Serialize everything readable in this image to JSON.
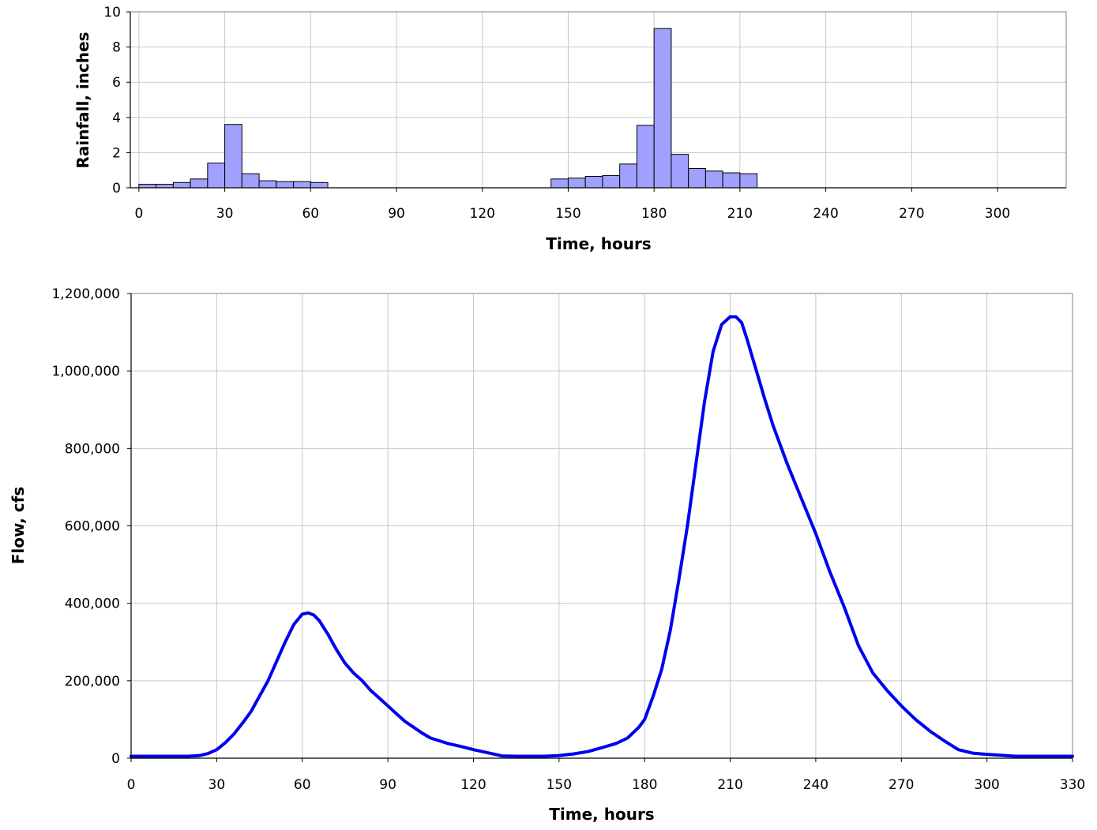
{
  "chart_data": [
    {
      "type": "bar",
      "title": "",
      "xlabel": "Time, hours",
      "ylabel": "Rainfall, inches",
      "xlim": [
        -3,
        324
      ],
      "ylim": [
        0,
        10
      ],
      "xticks": [
        0,
        30,
        60,
        90,
        120,
        150,
        180,
        210,
        240,
        270,
        300
      ],
      "yticks": [
        0,
        2,
        4,
        6,
        8,
        10
      ],
      "grid": true,
      "bar_color": "#a0a0ff",
      "bar_width": 6,
      "bars": [
        {
          "x": 3,
          "y": 0.2
        },
        {
          "x": 9,
          "y": 0.2
        },
        {
          "x": 15,
          "y": 0.3
        },
        {
          "x": 21,
          "y": 0.5
        },
        {
          "x": 27,
          "y": 1.4
        },
        {
          "x": 33,
          "y": 3.6
        },
        {
          "x": 39,
          "y": 0.8
        },
        {
          "x": 45,
          "y": 0.4
        },
        {
          "x": 51,
          "y": 0.35
        },
        {
          "x": 57,
          "y": 0.35
        },
        {
          "x": 63,
          "y": 0.3
        },
        {
          "x": 147,
          "y": 0.5
        },
        {
          "x": 153,
          "y": 0.55
        },
        {
          "x": 159,
          "y": 0.65
        },
        {
          "x": 165,
          "y": 0.7
        },
        {
          "x": 171,
          "y": 1.35
        },
        {
          "x": 177,
          "y": 3.55
        },
        {
          "x": 183,
          "y": 9.05
        },
        {
          "x": 189,
          "y": 1.9
        },
        {
          "x": 195,
          "y": 1.1
        },
        {
          "x": 201,
          "y": 0.95
        },
        {
          "x": 207,
          "y": 0.85
        },
        {
          "x": 213,
          "y": 0.8
        }
      ]
    },
    {
      "type": "line",
      "title": "",
      "xlabel": "Time, hours",
      "ylabel": "Flow, cfs",
      "xlim": [
        0,
        330
      ],
      "ylim": [
        0,
        1200000
      ],
      "xticks": [
        0,
        30,
        60,
        90,
        120,
        150,
        180,
        210,
        240,
        270,
        300,
        330
      ],
      "yticks": [
        0,
        200000,
        400000,
        600000,
        800000,
        1000000,
        1200000
      ],
      "ytick_labels": [
        "0",
        "200,000",
        "400,000",
        "600,000",
        "800,000",
        "1,000,000",
        "1,200,000"
      ],
      "grid": true,
      "line_color": "#0000ee",
      "x": [
        0,
        10,
        20,
        24,
        27,
        30,
        33,
        36,
        39,
        42,
        45,
        48,
        51,
        54,
        57,
        60,
        62,
        64,
        66,
        69,
        72,
        75,
        78,
        81,
        84,
        87,
        90,
        93,
        96,
        99,
        102,
        105,
        108,
        111,
        114,
        117,
        120,
        125,
        130,
        135,
        138,
        145,
        150,
        155,
        160,
        165,
        170,
        174,
        178,
        180,
        183,
        186,
        189,
        192,
        195,
        198,
        201,
        204,
        207,
        210,
        212,
        214,
        216,
        218,
        220,
        222,
        225,
        230,
        235,
        240,
        245,
        250,
        255,
        260,
        265,
        270,
        275,
        280,
        285,
        290,
        295,
        300,
        310,
        320,
        330
      ],
      "y": [
        5000,
        5000,
        5000,
        7000,
        12000,
        22000,
        40000,
        62000,
        90000,
        120000,
        160000,
        200000,
        250000,
        300000,
        345000,
        372000,
        375000,
        370000,
        355000,
        320000,
        280000,
        245000,
        220000,
        200000,
        175000,
        155000,
        135000,
        115000,
        95000,
        80000,
        65000,
        52000,
        45000,
        38000,
        33000,
        28000,
        22000,
        14000,
        6000,
        5000,
        5000,
        5000,
        7000,
        11000,
        17000,
        27000,
        38000,
        52000,
        80000,
        100000,
        160000,
        230000,
        330000,
        460000,
        600000,
        760000,
        920000,
        1050000,
        1120000,
        1140000,
        1140000,
        1125000,
        1080000,
        1030000,
        980000,
        930000,
        860000,
        760000,
        670000,
        580000,
        480000,
        390000,
        290000,
        220000,
        175000,
        135000,
        100000,
        70000,
        45000,
        22000,
        13000,
        10000,
        5000,
        5000,
        5000
      ]
    }
  ]
}
